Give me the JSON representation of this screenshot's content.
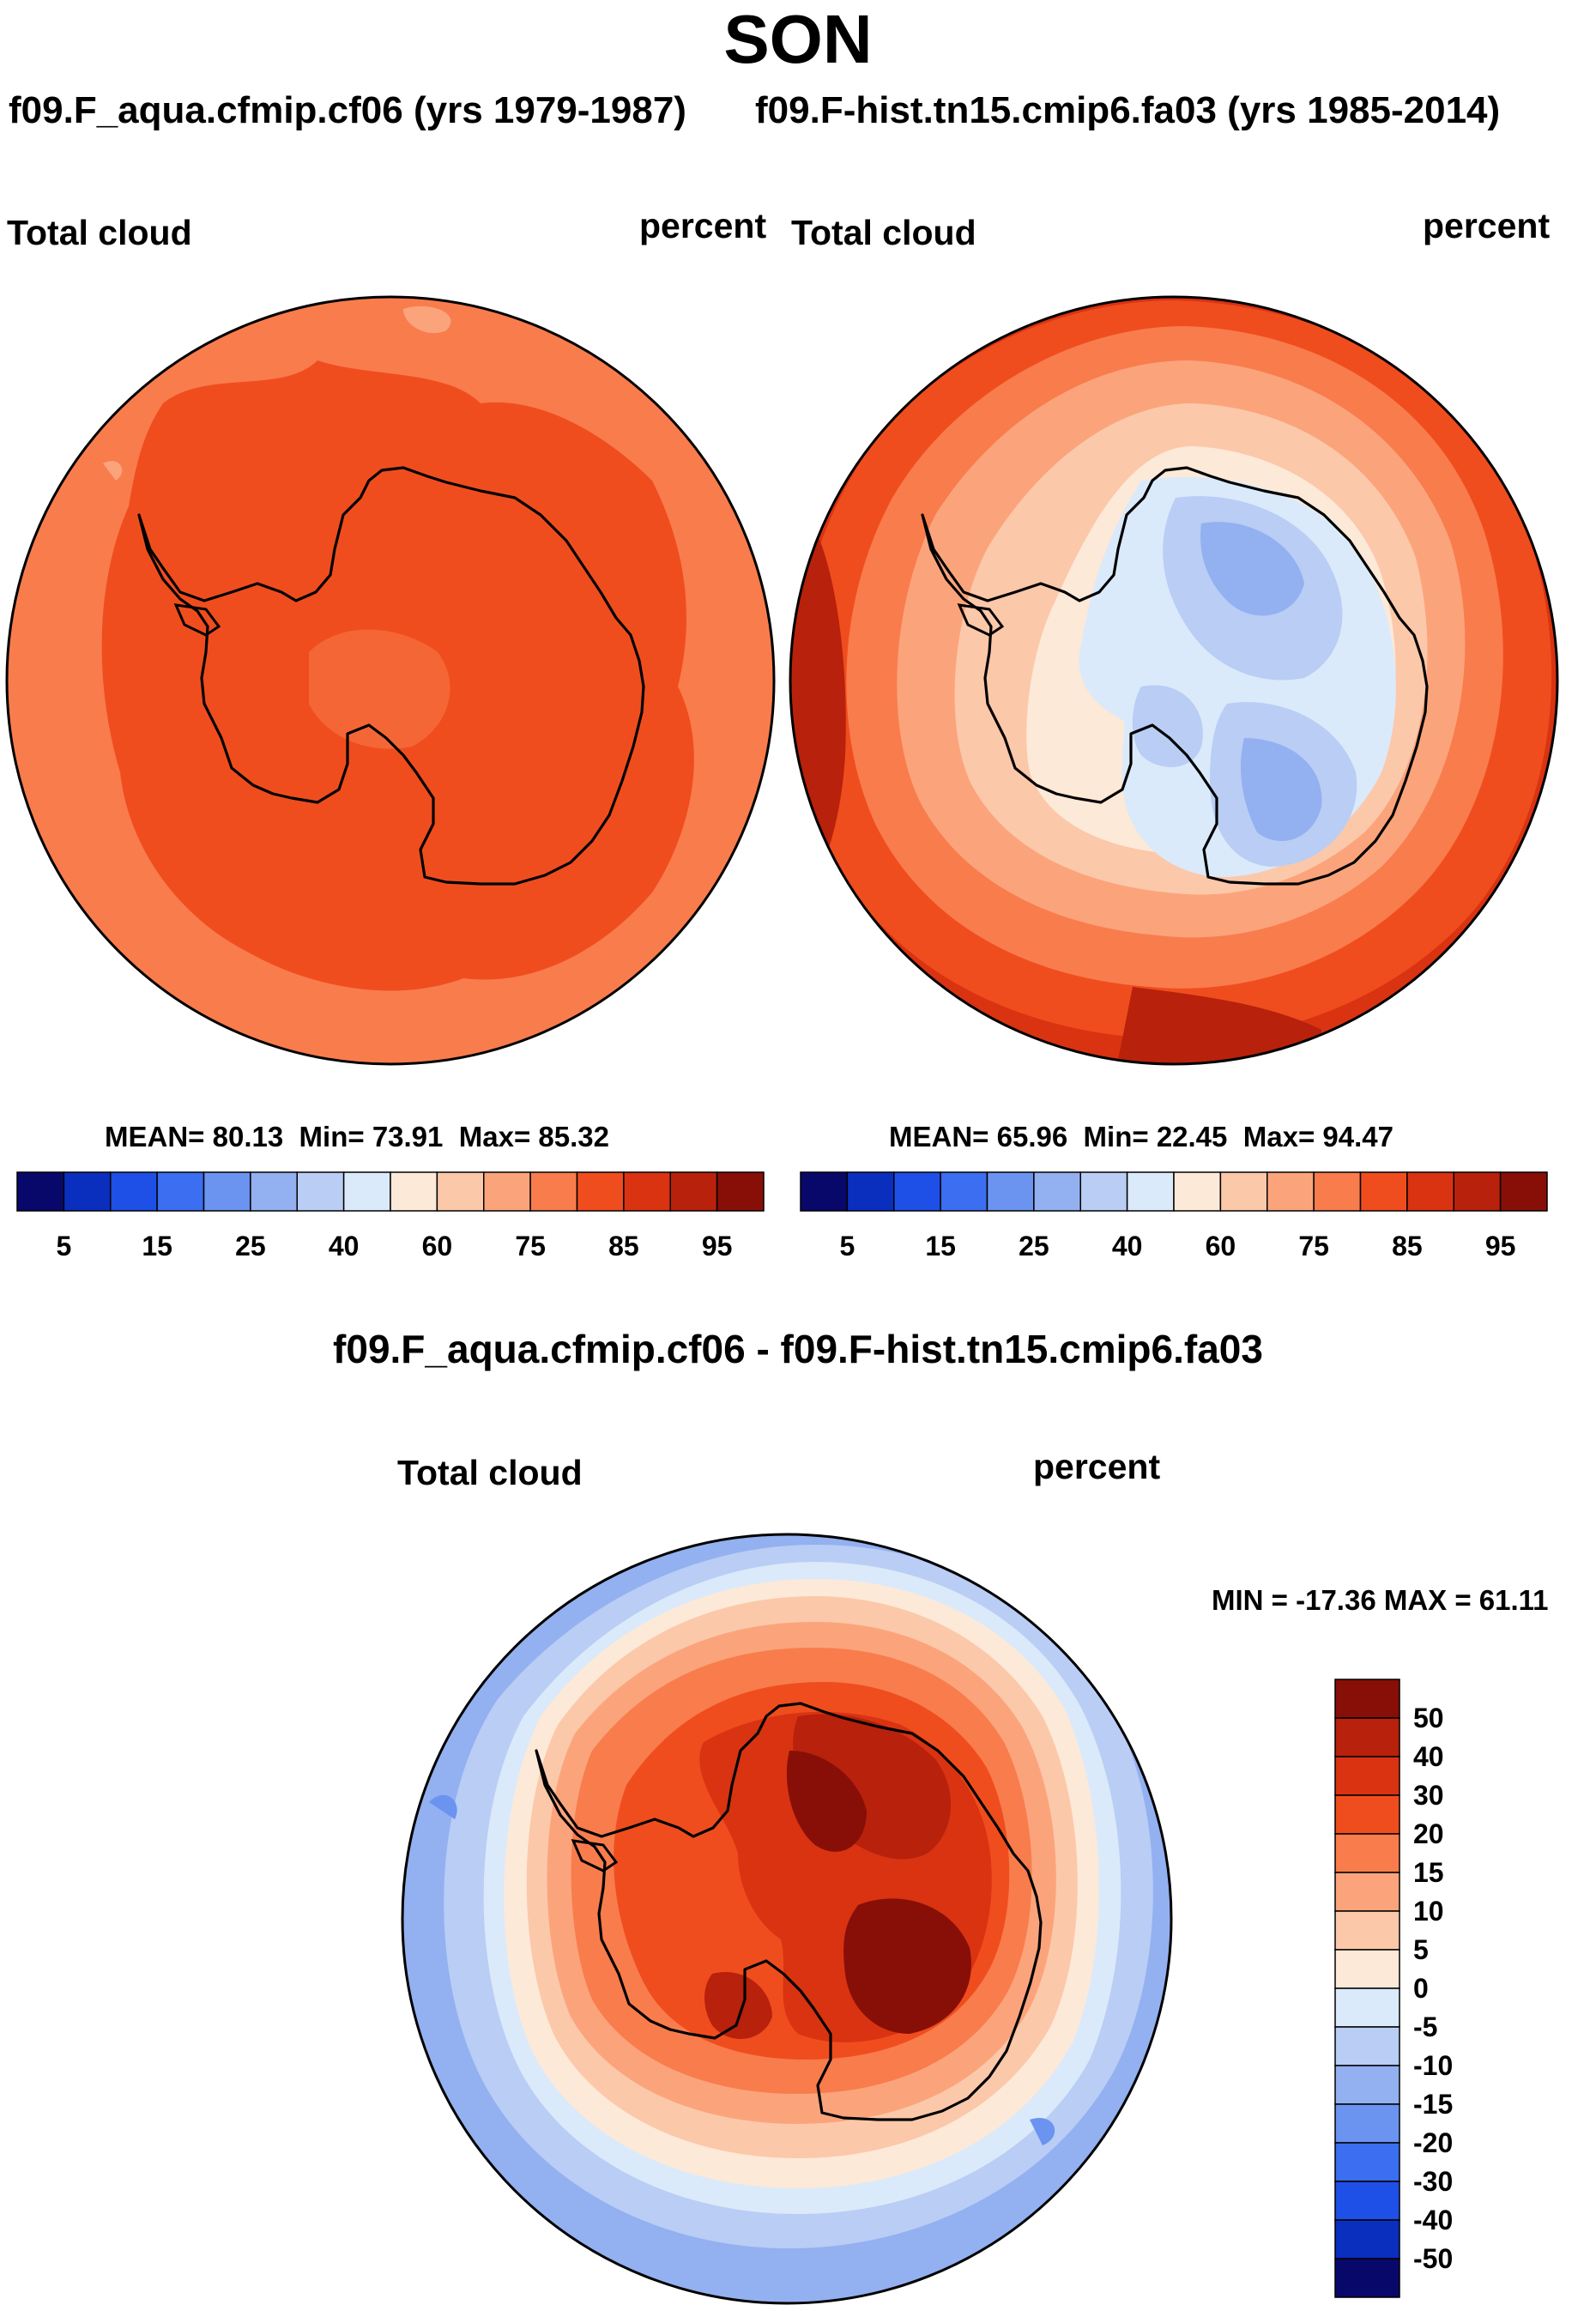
{
  "title": "SON",
  "panels": [
    {
      "case_title": "f09.F_aqua.cfmip.cf06 (yrs 1979-1987)",
      "variable": "Total cloud",
      "units": "percent",
      "stats": {
        "mean_label": "MEAN=",
        "mean": "80.13",
        "min_label": "Min=",
        "min": "73.91",
        "max_label": "Max=",
        "max": "85.32"
      }
    },
    {
      "case_title": "f09.F-hist.tn15.cmip6.fa03 (yrs 1985-2014)",
      "variable": "Total cloud",
      "units": "percent",
      "stats": {
        "mean_label": "MEAN=",
        "mean": "65.96",
        "min_label": "Min=",
        "min": "22.45",
        "max_label": "Max=",
        "max": "94.47"
      }
    }
  ],
  "abs_colorbar": {
    "colors": [
      "#08086b",
      "#0a2fbf",
      "#1e4fe6",
      "#3b6ef0",
      "#6b93f0",
      "#93b0f0",
      "#b9cdf5",
      "#daeafa",
      "#fde9d8",
      "#fcc8aa",
      "#fba47c",
      "#f97c4d",
      "#f04d1e",
      "#d93312",
      "#b8210b",
      "#870f07"
    ],
    "ticks": [
      "5",
      "15",
      "25",
      "40",
      "60",
      "75",
      "85",
      "95"
    ]
  },
  "diff": {
    "title": "f09.F_aqua.cfmip.cf06 - f09.F-hist.tn15.cmip6.fa03",
    "variable": "Total cloud",
    "units": "percent",
    "stats": {
      "text": "MIN = -17.36 MAX =  61.11"
    }
  },
  "diff_colorbar": {
    "colors": [
      "#870f07",
      "#b8210b",
      "#d93312",
      "#f04d1e",
      "#f97c4d",
      "#fba47c",
      "#fcc8aa",
      "#fde9d8",
      "#daeafa",
      "#b9cdf5",
      "#93b0f0",
      "#6b93f0",
      "#3b6ef0",
      "#1e4fe6",
      "#0a2fbf",
      "#08086b"
    ],
    "ticks": [
      "50",
      "40",
      "30",
      "20",
      "15",
      "10",
      "5",
      "0",
      "-5",
      "-10",
      "-15",
      "-20",
      "-30",
      "-40",
      "-50"
    ]
  }
}
